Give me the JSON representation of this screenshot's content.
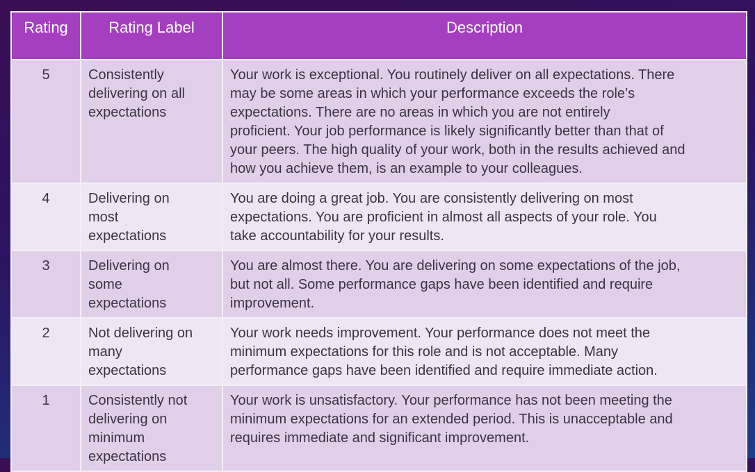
{
  "headers": [
    "Rating",
    "Rating Label",
    "Description"
  ],
  "rows": [
    {
      "rating": "5",
      "label": [
        "Consistently",
        "delivering on all",
        "expectations"
      ],
      "description": [
        "Your work is exceptional. You routinely deliver on all expectations. There",
        "may be some areas in which your performance exceeds the role’s",
        "expectations. There are no areas in which you are not entirely",
        "proficient. Your job performance is likely significantly better than that of",
        "your peers. The high quality of your work, both in the results achieved and",
        "how you achieve them, is an example to your colleagues."
      ]
    },
    {
      "rating": "4",
      "label": [
        "Delivering on",
        "most",
        "expectations"
      ],
      "description": [
        "You are doing a great job.  You are consistently delivering on most",
        "expectations.  You are proficient in almost all aspects of your role.  You",
        "take accountability for your results."
      ]
    },
    {
      "rating": "3",
      "label": [
        "Delivering on",
        "some",
        "expectations"
      ],
      "description": [
        "You are almost there. You are delivering on some expectations of the job,",
        "but not all. Some performance gaps have been identified and require",
        "improvement."
      ]
    },
    {
      "rating": "2",
      "label": [
        "Not delivering on",
        "many",
        "expectations"
      ],
      "description": [
        "Your work needs improvement.  Your performance does not meet the",
        "minimum expectations for this role and is not acceptable. Many",
        "performance gaps have been identified and require immediate action."
      ]
    },
    {
      "rating": "1",
      "label": [
        "Consistently not",
        "delivering on",
        "minimum",
        "expectations"
      ],
      "description": [
        "Your work is unsatisfactory.  Your performance has not been meeting the",
        "minimum expectations for an extended period.  This is unacceptable and",
        "requires immediate and significant improvement."
      ]
    }
  ],
  "colors": {
    "header": "#a43fc0",
    "row_odd": "#e1cfe9",
    "row_even": "#efe6f3"
  }
}
